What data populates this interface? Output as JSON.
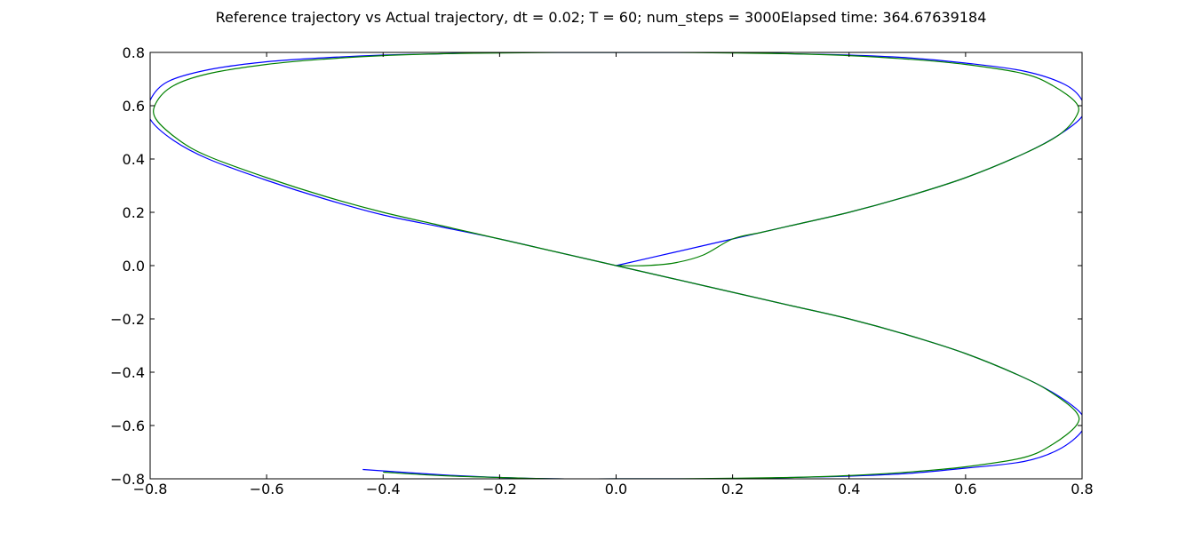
{
  "chart_data": {
    "type": "line",
    "title": "Reference trajectory vs Actual trajectory, dt = 0.02; T = 60; num_steps = 3000Elapsed time: 364.67639184",
    "xlabel": "",
    "ylabel": "",
    "xlim": [
      -0.8,
      0.8
    ],
    "ylim": [
      -0.8,
      0.8
    ],
    "xticks": [
      -0.8,
      -0.6,
      -0.4,
      -0.2,
      0.0,
      0.2,
      0.4,
      0.6,
      0.8
    ],
    "yticks": [
      -0.8,
      -0.6,
      -0.4,
      -0.2,
      0.0,
      0.2,
      0.4,
      0.6,
      0.8
    ],
    "xtick_labels": [
      "−0.8",
      "−0.6",
      "−0.4",
      "−0.2",
      "0.0",
      "0.2",
      "0.4",
      "0.6",
      "0.8"
    ],
    "ytick_labels": [
      "−0.8",
      "−0.6",
      "−0.4",
      "−0.2",
      "0.0",
      "0.2",
      "0.4",
      "0.6",
      "0.8"
    ],
    "grid": false,
    "legend": "none",
    "series": [
      {
        "color": "#0000ff",
        "x": [
          0.0,
          0.1,
          0.2,
          0.3,
          0.4,
          0.5,
          0.6,
          0.7,
          0.76,
          0.8,
          0.8,
          0.77,
          0.7,
          0.6,
          0.5,
          0.4,
          0.3,
          0.2,
          0.1,
          0.0,
          -0.1,
          -0.2,
          -0.3,
          -0.4,
          -0.5,
          -0.6,
          -0.7,
          -0.77,
          -0.8,
          -0.8,
          -0.76,
          -0.7,
          -0.6,
          -0.5,
          -0.4,
          -0.3,
          -0.2,
          -0.1,
          0.0,
          0.1,
          0.2,
          0.3,
          0.4,
          0.5,
          0.6,
          0.7,
          0.76,
          0.8,
          0.8,
          0.76,
          0.7,
          0.6,
          0.5,
          0.4,
          0.3,
          0.2,
          0.1,
          0.0,
          -0.1,
          -0.2,
          -0.3,
          -0.435
        ],
        "y": [
          0.0,
          0.05,
          0.1,
          0.15,
          0.2,
          0.26,
          0.33,
          0.42,
          0.49,
          0.56,
          0.62,
          0.68,
          0.73,
          0.76,
          0.78,
          0.79,
          0.795,
          0.8,
          0.8,
          0.8,
          0.8,
          0.8,
          0.795,
          0.79,
          0.78,
          0.765,
          0.735,
          0.69,
          0.62,
          0.55,
          0.47,
          0.4,
          0.32,
          0.25,
          0.19,
          0.145,
          0.1,
          0.05,
          0.0,
          -0.05,
          -0.1,
          -0.15,
          -0.2,
          -0.26,
          -0.33,
          -0.42,
          -0.49,
          -0.56,
          -0.62,
          -0.69,
          -0.735,
          -0.76,
          -0.78,
          -0.79,
          -0.795,
          -0.8,
          -0.8,
          -0.8,
          -0.8,
          -0.795,
          -0.785,
          -0.765
        ]
      },
      {
        "color": "#008000",
        "x": [
          0.0,
          0.05,
          0.1,
          0.15,
          0.2,
          0.25,
          0.3,
          0.4,
          0.5,
          0.6,
          0.7,
          0.76,
          0.79,
          0.79,
          0.75,
          0.7,
          0.6,
          0.5,
          0.4,
          0.3,
          0.2,
          0.1,
          0.0,
          -0.1,
          -0.2,
          -0.3,
          -0.4,
          -0.5,
          -0.6,
          -0.7,
          -0.76,
          -0.79,
          -0.79,
          -0.75,
          -0.7,
          -0.6,
          -0.5,
          -0.4,
          -0.3,
          -0.2,
          -0.1,
          0.0,
          0.1,
          0.2,
          0.3,
          0.4,
          0.5,
          0.6,
          0.7,
          0.75,
          0.79,
          0.79,
          0.75,
          0.7,
          0.6,
          0.5,
          0.4,
          0.3,
          0.2,
          0.1,
          0.0,
          -0.1,
          -0.2,
          -0.3,
          -0.4
        ],
        "y": [
          0.0,
          0.0,
          0.01,
          0.04,
          0.1,
          0.125,
          0.15,
          0.2,
          0.26,
          0.33,
          0.42,
          0.49,
          0.56,
          0.61,
          0.675,
          0.72,
          0.755,
          0.775,
          0.788,
          0.795,
          0.798,
          0.8,
          0.8,
          0.8,
          0.798,
          0.795,
          0.788,
          0.775,
          0.755,
          0.72,
          0.675,
          0.61,
          0.55,
          0.47,
          0.41,
          0.33,
          0.26,
          0.2,
          0.15,
          0.1,
          0.05,
          0.0,
          -0.05,
          -0.1,
          -0.15,
          -0.2,
          -0.26,
          -0.33,
          -0.42,
          -0.48,
          -0.55,
          -0.6,
          -0.67,
          -0.72,
          -0.755,
          -0.775,
          -0.788,
          -0.795,
          -0.798,
          -0.8,
          -0.8,
          -0.8,
          -0.795,
          -0.788,
          -0.775
        ]
      }
    ]
  }
}
